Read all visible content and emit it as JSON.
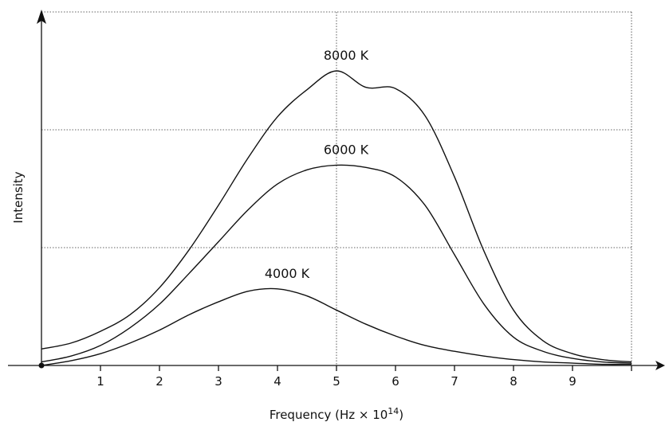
{
  "chart_data": {
    "type": "line",
    "title": "",
    "xlabel": "Frequency (Hz × 10",
    "xlabel_sup": "14",
    "xlabel_suffix": ")",
    "ylabel": "Intensity",
    "xlim": [
      0,
      10
    ],
    "ylim": [
      0,
      3
    ],
    "x_ticks": [
      1,
      2,
      3,
      4,
      5,
      6,
      7,
      8,
      9
    ],
    "grid": "dotted lines at x = 5 and x = 10, y = 1, 2, 3",
    "series": [
      {
        "name": "8000 K",
        "x": [
          0,
          0.5,
          1,
          1.5,
          2,
          2.5,
          3,
          3.5,
          4,
          4.5,
          5,
          5.5,
          6,
          6.5,
          7,
          7.5,
          8,
          8.5,
          9,
          9.5,
          10
        ],
        "y": [
          0.14,
          0.19,
          0.29,
          0.43,
          0.66,
          0.98,
          1.36,
          1.76,
          2.11,
          2.34,
          2.5,
          2.36,
          2.35,
          2.12,
          1.6,
          0.97,
          0.47,
          0.21,
          0.1,
          0.05,
          0.03
        ]
      },
      {
        "name": "6000 K",
        "x": [
          0,
          0.5,
          1,
          1.5,
          2,
          2.5,
          3,
          3.5,
          4,
          4.5,
          5,
          5.5,
          6,
          6.5,
          7,
          7.5,
          8,
          8.5,
          9,
          9.5,
          10
        ],
        "y": [
          0.03,
          0.08,
          0.17,
          0.32,
          0.52,
          0.78,
          1.05,
          1.32,
          1.54,
          1.66,
          1.7,
          1.68,
          1.6,
          1.36,
          0.94,
          0.52,
          0.24,
          0.12,
          0.06,
          0.03,
          0.02
        ]
      },
      {
        "name": "4000 K",
        "x": [
          0,
          0.5,
          1,
          1.5,
          2,
          2.5,
          3,
          3.5,
          4,
          4.5,
          5,
          5.5,
          6,
          6.5,
          7,
          7.5,
          8,
          8.5,
          9,
          9.5,
          10
        ],
        "y": [
          0.0,
          0.04,
          0.1,
          0.19,
          0.3,
          0.43,
          0.54,
          0.63,
          0.65,
          0.59,
          0.47,
          0.35,
          0.25,
          0.17,
          0.12,
          0.08,
          0.05,
          0.03,
          0.02,
          0.01,
          0.01
        ]
      }
    ]
  }
}
